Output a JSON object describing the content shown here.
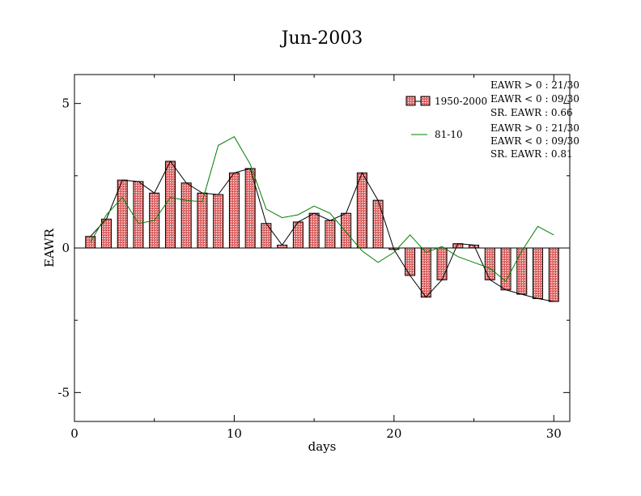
{
  "chart_data": {
    "type": "bar",
    "title": "Jun-2003",
    "xlabel": "days",
    "ylabel": "EAWR",
    "xlim": [
      0,
      31
    ],
    "ylim": [
      -6,
      6
    ],
    "xticks": [
      0,
      10,
      20,
      30
    ],
    "xtick_labels": [
      "0",
      "10",
      "20",
      "30"
    ],
    "yticks": [
      -5,
      0,
      5
    ],
    "ytick_labels": [
      "-5",
      "0",
      "5"
    ],
    "grid": false,
    "legend_position": "top-right",
    "x": [
      1,
      2,
      3,
      4,
      5,
      6,
      7,
      8,
      9,
      10,
      11,
      12,
      13,
      14,
      15,
      16,
      17,
      18,
      19,
      20,
      21,
      22,
      23,
      24,
      25,
      26,
      27,
      28,
      29,
      30
    ],
    "series": [
      {
        "name": "1950-2000",
        "kind": "bar",
        "color": "#e87878",
        "values": [
          0.4,
          1.0,
          2.35,
          2.3,
          1.9,
          3.0,
          2.25,
          1.9,
          1.85,
          2.6,
          2.75,
          0.85,
          0.1,
          0.9,
          1.2,
          0.95,
          1.2,
          2.6,
          1.65,
          -0.05,
          -0.95,
          -1.7,
          -1.1,
          0.15,
          0.1,
          -1.1,
          -1.45,
          -1.6,
          -1.75,
          -1.85
        ]
      },
      {
        "name": "81-10",
        "kind": "line",
        "color": "#008000",
        "values": [
          0.2,
          1.15,
          1.75,
          0.85,
          0.95,
          1.75,
          1.65,
          1.6,
          3.55,
          3.85,
          2.9,
          1.35,
          1.05,
          1.15,
          1.45,
          1.2,
          0.55,
          -0.1,
          -0.5,
          -0.15,
          0.45,
          -0.15,
          0.05,
          -0.3,
          -0.5,
          -0.7,
          -1.15,
          -0.1,
          0.75,
          0.45
        ]
      }
    ],
    "stats_block_1": [
      "EAWR > 0 : 21/30",
      "EAWR < 0 : 09/30",
      "SR. EAWR :  0.66"
    ],
    "stats_block_2": [
      "EAWR > 0 : 21/30",
      "EAWR < 0 : 09/30",
      "SR. EAWR :  0.81"
    ]
  }
}
